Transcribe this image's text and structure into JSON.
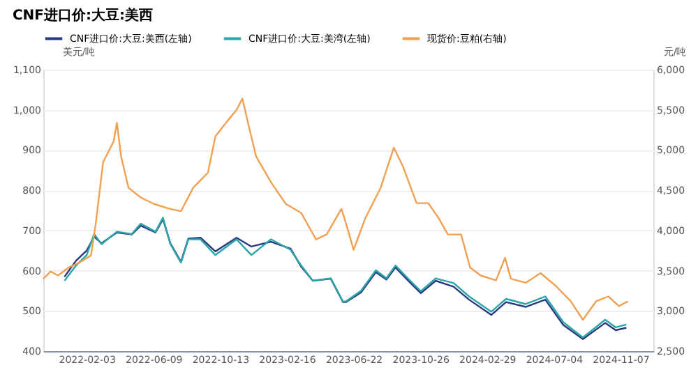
{
  "chart_data": {
    "type": "line",
    "title": "CNF进口价:大豆:美西",
    "ylabel": "美元/吨",
    "y2label": "元/吨",
    "xlim": [
      "2021-11-13",
      "2025-01-08"
    ],
    "xticks": [
      "2022-02-03",
      "2022-06-09",
      "2022-10-13",
      "2023-02-16",
      "2023-06-22",
      "2023-10-26",
      "2024-02-29",
      "2024-07-04",
      "2024-11-07"
    ],
    "ylim": [
      400,
      1100
    ],
    "yticks": [
      400,
      500,
      600,
      700,
      800,
      900,
      {
        "value": 1000,
        "label": "1,000"
      },
      {
        "value": 1100,
        "label": "1,100"
      }
    ],
    "y2lim": [
      2500,
      6000
    ],
    "y2ticks": [
      {
        "value": 2500,
        "label": "2,500"
      },
      {
        "value": 3000,
        "label": "3,000"
      },
      {
        "value": 3500,
        "label": "3,500"
      },
      {
        "value": 4000,
        "label": "4,000"
      },
      {
        "value": 4500,
        "label": "4,500"
      },
      {
        "value": 5000,
        "label": "5,000"
      },
      {
        "value": 5500,
        "label": "5,500"
      },
      {
        "value": 6000,
        "label": "6,000"
      }
    ],
    "grid": "y",
    "legend": "top",
    "line_style": "solid",
    "series": [
      {
        "name": "CNF进口价:大豆:美西(左轴)",
        "color": "#2b3a80",
        "x": [
          "2021-12-23",
          "2022-01-14",
          "2022-02-03",
          "2022-02-17",
          "2022-03-03",
          "2022-04-01",
          "2022-04-29",
          "2022-05-16",
          "2022-06-13",
          "2022-06-27",
          "2022-07-11",
          "2022-07-31",
          "2022-08-14",
          "2022-09-06",
          "2022-10-04",
          "2022-11-13",
          "2022-12-11",
          "2023-01-17",
          "2023-02-23",
          "2023-03-15",
          "2023-04-06",
          "2023-05-10",
          "2023-06-02",
          "2023-06-08",
          "2023-07-06",
          "2023-08-03",
          "2023-08-23",
          "2023-09-09",
          "2023-10-07",
          "2023-10-27",
          "2023-11-24",
          "2023-12-28",
          "2024-01-26",
          "2024-03-08",
          "2024-04-05",
          "2024-05-12",
          "2024-06-18",
          "2024-07-22",
          "2024-08-28",
          "2024-10-09",
          "2024-10-29",
          "2024-11-18"
        ],
        "values": [
          585,
          625,
          650,
          685,
          668,
          695,
          690,
          712,
          695,
          728,
          668,
          622,
          680,
          682,
          648,
          682,
          660,
          672,
          655,
          610,
          575,
          580,
          522,
          522,
          546,
          596,
          578,
          608,
          570,
          544,
          575,
          560,
          528,
          490,
          522,
          510,
          528,
          465,
          430,
          470,
          452,
          458
        ]
      },
      {
        "name": "CNF进口价:大豆:美湾(左轴)",
        "color": "#2aa5a8",
        "x": [
          "2021-12-23",
          "2022-01-14",
          "2022-02-03",
          "2022-02-17",
          "2022-03-03",
          "2022-04-01",
          "2022-04-29",
          "2022-05-16",
          "2022-06-13",
          "2022-06-27",
          "2022-07-11",
          "2022-07-31",
          "2022-08-14",
          "2022-09-06",
          "2022-10-04",
          "2022-11-13",
          "2022-12-11",
          "2023-01-17",
          "2023-02-23",
          "2023-03-15",
          "2023-04-06",
          "2023-05-10",
          "2023-06-02",
          "2023-06-08",
          "2023-07-06",
          "2023-08-03",
          "2023-08-23",
          "2023-09-09",
          "2023-10-07",
          "2023-10-27",
          "2023-11-24",
          "2023-12-28",
          "2024-01-26",
          "2024-03-08",
          "2024-04-05",
          "2024-05-12",
          "2024-06-18",
          "2024-07-22",
          "2024-08-28",
          "2024-10-09",
          "2024-10-29",
          "2024-11-18"
        ],
        "values": [
          575,
          613,
          639,
          691,
          666,
          697,
          691,
          717,
          697,
          732,
          666,
          620,
          678,
          678,
          639,
          678,
          639,
          678,
          652,
          613,
          575,
          581,
          523,
          524,
          550,
          601,
          581,
          613,
          575,
          549,
          581,
          569,
          536,
          498,
          530,
          517,
          536,
          472,
          434,
          478,
          459,
          466
        ]
      },
      {
        "name": "现货价:豆粕(右轴)",
        "color": "#f0a050",
        "axis": "y2",
        "x": [
          "2021-11-13",
          "2021-11-27",
          "2021-12-11",
          "2021-12-31",
          "2022-01-20",
          "2022-02-11",
          "2022-02-20",
          "2022-03-06",
          "2022-03-26",
          "2022-04-01",
          "2022-04-09",
          "2022-04-23",
          "2022-05-16",
          "2022-06-10",
          "2022-07-09",
          "2022-07-31",
          "2022-08-23",
          "2022-09-20",
          "2022-10-04",
          "2022-10-24",
          "2022-11-13",
          "2022-11-24",
          "2022-12-06",
          "2022-12-20",
          "2023-01-17",
          "2023-02-14",
          "2023-03-15",
          "2023-04-12",
          "2023-05-02",
          "2023-05-30",
          "2023-06-08",
          "2023-06-22",
          "2023-07-14",
          "2023-08-12",
          "2023-09-06",
          "2023-09-23",
          "2023-10-19",
          "2023-11-10",
          "2023-11-30",
          "2023-12-17",
          "2024-01-11",
          "2024-01-28",
          "2024-02-17",
          "2024-03-17",
          "2024-04-03",
          "2024-04-14",
          "2024-05-12",
          "2024-06-09",
          "2024-07-08",
          "2024-08-05",
          "2024-08-28",
          "2024-09-22",
          "2024-10-15",
          "2024-11-04",
          "2024-11-21"
        ],
        "values": [
          3400,
          3490,
          3440,
          3540,
          3600,
          3690,
          4080,
          4850,
          5110,
          5340,
          4920,
          4530,
          4410,
          4330,
          4270,
          4240,
          4530,
          4720,
          5170,
          5340,
          5500,
          5640,
          5300,
          4920,
          4600,
          4330,
          4220,
          3890,
          3950,
          4270,
          4080,
          3760,
          4150,
          4530,
          5030,
          4800,
          4340,
          4340,
          4150,
          3950,
          3950,
          3540,
          3440,
          3380,
          3660,
          3400,
          3350,
          3470,
          3310,
          3120,
          2890,
          3120,
          3180,
          3060,
          3120
        ]
      }
    ]
  }
}
